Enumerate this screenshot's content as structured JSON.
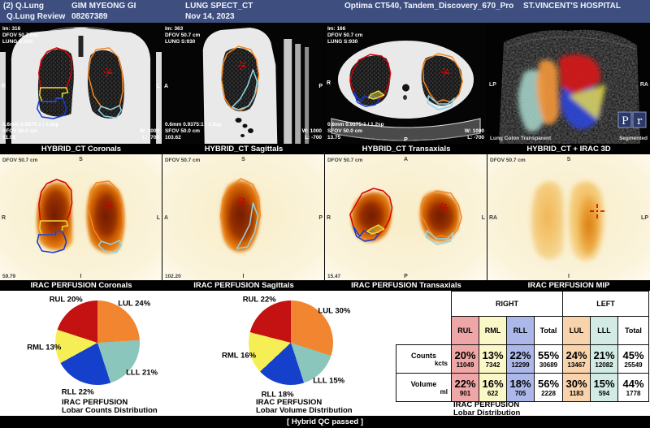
{
  "header": {
    "app_label": "(2) Q.Lung",
    "view_label": "Q.Lung Review",
    "patient_name": "GIM MYEONG GI",
    "patient_id": "08267389",
    "study_desc": "LUNG SPECT_CT",
    "study_date": "Nov 14, 2023",
    "scanner": "Optima CT540, Tandem_Discovery_670_Pro",
    "hospital": "ST.VINCENT'S HOSPITAL"
  },
  "ct_row": {
    "panels": [
      {
        "title": "HYBRID_CT Coronals",
        "im": "Im: 316",
        "dfov": "DFOV 50.7 cm",
        "series": "LUNG S:930",
        "recon": "0.6mm 0.9375:1 / 1.0sp",
        "sfov": "SFOV 50.0 cm",
        "loc": "51.06",
        "win": "W: 1000",
        "lev": "L: -700",
        "left": "R",
        "right": "L"
      },
      {
        "title": "HYBRID_CT Sagittals",
        "im": "Im: 363",
        "dfov": "DFOV 50.7 cm",
        "series": "LUNG S:930",
        "recon": "0.6mm 0.9375:1 / 1.0sp",
        "sfov": "SFOV 50.0 cm",
        "loc": "103.62",
        "win": "W: 1000",
        "lev": "L: -700",
        "left": "A",
        "right": "P"
      },
      {
        "title": "HYBRID_CT Transaxials",
        "im": "Im: 166",
        "dfov": "DFOV 50.7 cm",
        "series": "LUNG S:930",
        "recon": "0.6mm 0.9375:1 / 1.2sp",
        "sfov": "SFOV 50.0 cm",
        "loc": "13.75",
        "win": "W: 1000",
        "lev": "L: -700",
        "left": "R",
        "bottom": "P"
      },
      {
        "title": "HYBRID_CT + IRAC 3D",
        "left": "LP",
        "right": "RA",
        "render_mode": "Lung Colon Transparent",
        "render_state": "Segmented",
        "logo_p": "P",
        "logo_r": "r"
      }
    ]
  },
  "nm_row": {
    "panels": [
      {
        "title": "IRAC PERFUSION Coronals",
        "dfov": "DFOV 50.7 cm",
        "top": "S",
        "bottom": "I",
        "left": "R",
        "right": "L",
        "loc": "59.79"
      },
      {
        "title": "IRAC PERFUSION Sagittals",
        "dfov": "DFOV 50.7 cm",
        "top": "S",
        "bottom": "I",
        "left": "A",
        "right": "P",
        "loc": "102.20"
      },
      {
        "title": "IRAC PERFUSION Transaxials",
        "dfov": "DFOV 50.7 cm",
        "top": "A",
        "bottom": "P",
        "left": "R",
        "right": "L",
        "loc": "15.47"
      },
      {
        "title": "IRAC PERFUSION MIP",
        "dfov": "DFOV 50.7 cm",
        "top": "S",
        "bottom": "I",
        "left": "RA",
        "right": "LP"
      }
    ]
  },
  "chart_data": [
    {
      "type": "pie",
      "title": "IRAC PERFUSION Lobar Counts Distribution",
      "labels": [
        "LUL",
        "LLL",
        "RLL",
        "RML",
        "RUL"
      ],
      "values": [
        24,
        21,
        22,
        13,
        20
      ],
      "colors": [
        "#f28530",
        "#8ac6bc",
        "#1540cc",
        "#f5ef55",
        "#c41212"
      ],
      "caption1": "IRAC PERFUSION",
      "caption2": "Lobar Counts Distribution",
      "legend_position": "around",
      "unit": "%"
    },
    {
      "type": "pie",
      "title": "IRAC PERFUSION Lobar Volume Distribution",
      "labels": [
        "LUL",
        "LLL",
        "RLL",
        "RML",
        "RUL"
      ],
      "values": [
        30,
        15,
        18,
        16,
        22
      ],
      "colors": [
        "#f28530",
        "#8ac6bc",
        "#1540cc",
        "#f5ef55",
        "#c41212"
      ],
      "caption1": "IRAC PERFUSION",
      "caption2": "Lobar Volume Distribution",
      "legend_position": "around",
      "unit": "%"
    },
    {
      "type": "table",
      "title": "IRAC PERFUSION Lobar Distribution",
      "group_headers": [
        "RIGHT",
        "LEFT"
      ],
      "columns": [
        {
          "label": "RUL",
          "bg": "#efa6a6"
        },
        {
          "label": "RML",
          "bg": "#fbf8c8"
        },
        {
          "label": "RLL",
          "bg": "#adb8ea"
        },
        {
          "label": "Total",
          "bg": "#ffffff"
        },
        {
          "label": "LUL",
          "bg": "#f8d3ab"
        },
        {
          "label": "LLL",
          "bg": "#d2ebe5"
        },
        {
          "label": "Total",
          "bg": "#ffffff"
        }
      ],
      "rows": [
        {
          "label": "Counts",
          "unit": "kcts",
          "pct": [
            "20%",
            "13%",
            "22%",
            "55%",
            "24%",
            "21%",
            "45%"
          ],
          "values": [
            "11049",
            "7342",
            "12299",
            "30689",
            "13467",
            "12082",
            "25549"
          ]
        },
        {
          "label": "Volume",
          "unit": "ml",
          "pct": [
            "22%",
            "16%",
            "18%",
            "56%",
            "30%",
            "15%",
            "44%"
          ],
          "values": [
            "901",
            "622",
            "705",
            "2228",
            "1183",
            "594",
            "1778"
          ]
        }
      ],
      "caption1": "IRAC PERFUSION",
      "caption2": "Lobar Distribution"
    }
  ],
  "status_bar": "[ Hybrid QC passed ]",
  "colors": {
    "header_bg": "#3e4e7f",
    "contour_rul": "#d40000",
    "contour_rml": "#e8dc3c",
    "contour_rll": "#1238d8",
    "contour_lul": "#f5861f",
    "contour_lll": "#8fd4e8",
    "marker": "#e00000"
  }
}
